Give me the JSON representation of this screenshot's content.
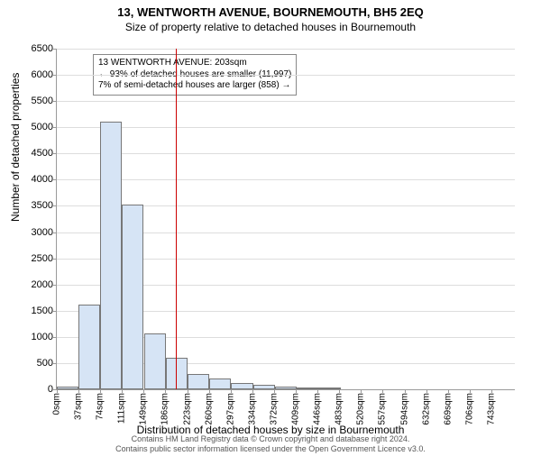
{
  "title_main": "13, WENTWORTH AVENUE, BOURNEMOUTH, BH5 2EQ",
  "title_sub": "Size of property relative to detached houses in Bournemouth",
  "ylabel": "Number of detached properties",
  "xlabel": "Distribution of detached houses by size in Bournemouth",
  "footer_line1": "Contains HM Land Registry data © Crown copyright and database right 2024.",
  "footer_line2": "Contains public sector information licensed under the Open Government Licence v3.0.",
  "annotation": {
    "line1": "13 WENTWORTH AVENUE: 203sqm",
    "line2": "← 93% of detached houses are smaller (11,997)",
    "line3": "7% of semi-detached houses are larger (858) →"
  },
  "chart": {
    "type": "bar",
    "bar_fill": "#d6e4f5",
    "bar_border": "#777777",
    "grid_color": "#dddddd",
    "axis_color": "#999999",
    "background": "#ffffff",
    "vline_x": 203,
    "vline_color": "#cc0000",
    "ylim": [
      0,
      6500
    ],
    "ytick_step": 500,
    "xlim": [
      0,
      780
    ],
    "xtick_step": 37,
    "xtick_labels": [
      "0sqm",
      "37sqm",
      "74sqm",
      "111sqm",
      "149sqm",
      "186sqm",
      "223sqm",
      "260sqm",
      "297sqm",
      "334sqm",
      "372sqm",
      "409sqm",
      "446sqm",
      "483sqm",
      "520sqm",
      "557sqm",
      "594sqm",
      "632sqm",
      "669sqm",
      "706sqm",
      "743sqm"
    ],
    "bars": [
      {
        "x": 0,
        "value": 60
      },
      {
        "x": 37,
        "value": 1620
      },
      {
        "x": 74,
        "value": 5100
      },
      {
        "x": 111,
        "value": 3520
      },
      {
        "x": 149,
        "value": 1060
      },
      {
        "x": 186,
        "value": 600
      },
      {
        "x": 223,
        "value": 290
      },
      {
        "x": 260,
        "value": 200
      },
      {
        "x": 297,
        "value": 120
      },
      {
        "x": 334,
        "value": 80
      },
      {
        "x": 372,
        "value": 60
      },
      {
        "x": 409,
        "value": 40
      },
      {
        "x": 446,
        "value": 20
      },
      {
        "x": 483,
        "value": 0
      },
      {
        "x": 520,
        "value": 0
      },
      {
        "x": 557,
        "value": 0
      },
      {
        "x": 594,
        "value": 0
      },
      {
        "x": 632,
        "value": 0
      },
      {
        "x": 669,
        "value": 0
      },
      {
        "x": 706,
        "value": 0
      },
      {
        "x": 743,
        "value": 0
      }
    ]
  }
}
